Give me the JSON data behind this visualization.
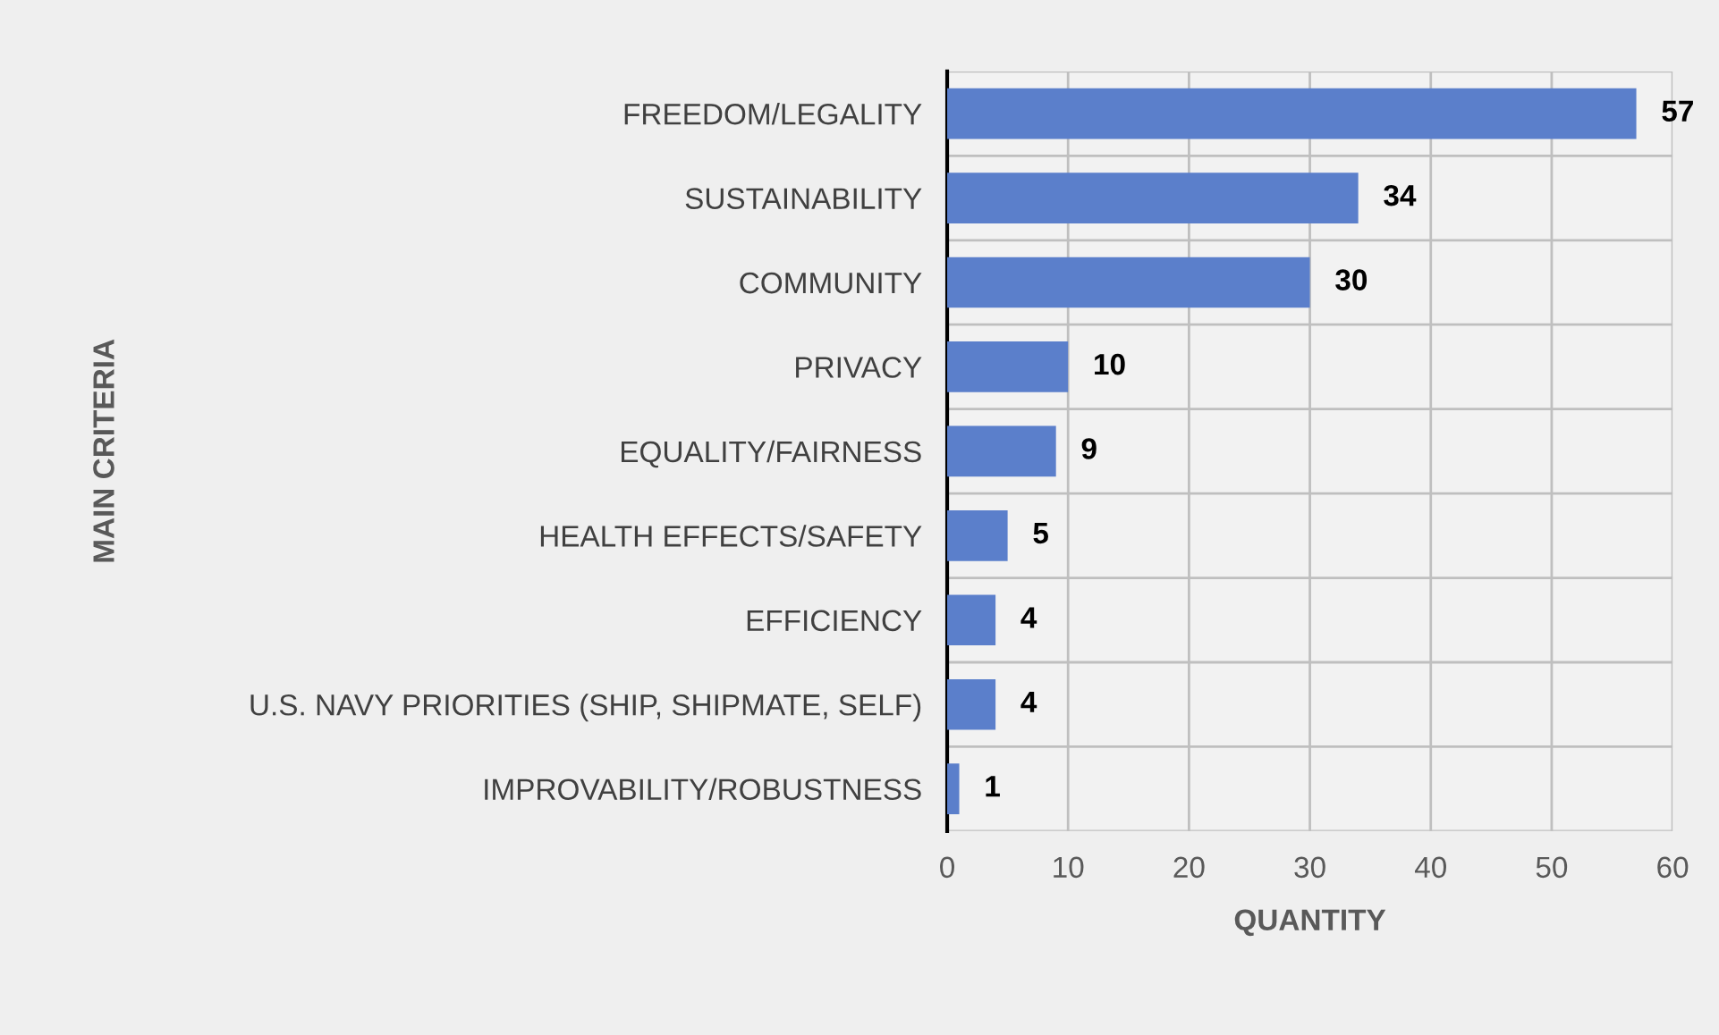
{
  "chart_data": {
    "type": "bar",
    "orientation": "horizontal",
    "xlabel": "QUANTITY",
    "ylabel": "MAIN CRITERIA",
    "categories": [
      "FREEDOM/LEGALITY",
      "SUSTAINABILITY",
      "COMMUNITY",
      "PRIVACY",
      "EQUALITY/FAIRNESS",
      "HEALTH EFFECTS/SAFETY",
      "EFFICIENCY",
      "U.S. NAVY PRIORITIES (SHIP, SHIPMATE, SELF)",
      "IMPROVABILITY/ROBUSTNESS"
    ],
    "values": [
      57,
      34,
      30,
      10,
      9,
      5,
      4,
      4,
      1
    ],
    "color": "#5b7fcb",
    "xlim": [
      0,
      60
    ],
    "xticks": [
      0,
      10,
      20,
      30,
      40,
      50,
      60
    ],
    "grid": true,
    "data_labels": true
  }
}
